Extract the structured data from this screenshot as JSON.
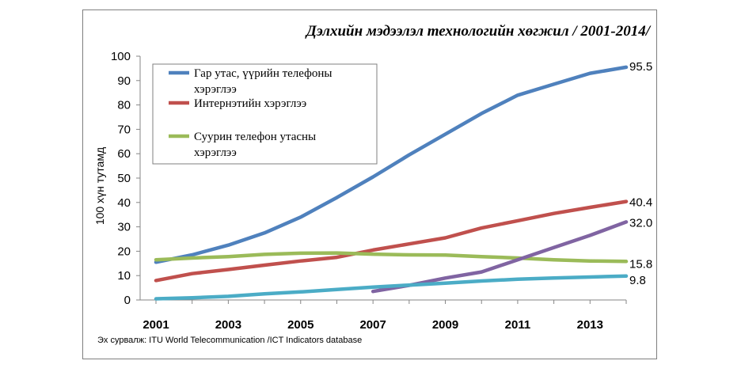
{
  "chart_data": {
    "type": "line",
    "title": "Дэлхийн мэдээлэл технологийн хөгжил / 2001-2014/",
    "ylabel": "100 хүн тутамд",
    "xlabel": "",
    "ylim": [
      0,
      100
    ],
    "xlim": [
      2001,
      2014
    ],
    "x": [
      2001,
      2002,
      2003,
      2004,
      2005,
      2006,
      2007,
      2008,
      2009,
      2010,
      2011,
      2012,
      2013,
      2014
    ],
    "y_ticks": [
      "0",
      "10",
      "20",
      "30",
      "40",
      "50",
      "60",
      "70",
      "80",
      "90",
      "100"
    ],
    "x_ticks": [
      "2001",
      "2003",
      "2005",
      "2007",
      "2009",
      "2011",
      "2013"
    ],
    "grid": false,
    "legend_position": "top-left",
    "series": [
      {
        "name": "Гар утас, үүрийн телефоны хэрэглээ",
        "legend_lines": [
          "Гар утас, үүрийн телефоны",
          "хэрэглээ"
        ],
        "color": "#4F81BD",
        "x": [
          2001,
          2002,
          2003,
          2004,
          2005,
          2006,
          2007,
          2008,
          2009,
          2010,
          2011,
          2012,
          2013,
          2014
        ],
        "values": [
          15.5,
          18.5,
          22.5,
          27.5,
          34,
          42,
          50.5,
          59.5,
          68,
          76.5,
          84,
          88.5,
          93,
          95.5
        ],
        "end_label": "95.5"
      },
      {
        "name": "Интернэтийн хэрэглээ",
        "legend_lines": [
          "Интернэтийн хэрэглээ"
        ],
        "color": "#C0504D",
        "x": [
          2001,
          2002,
          2003,
          2004,
          2005,
          2006,
          2007,
          2008,
          2009,
          2010,
          2011,
          2012,
          2013,
          2014
        ],
        "values": [
          8,
          10.8,
          12.5,
          14.3,
          16,
          17.5,
          20.5,
          23,
          25.5,
          29.5,
          32.5,
          35.5,
          38,
          40.4
        ],
        "end_label": "40.4"
      },
      {
        "name": "Суурин телефон утасны хэрэглээ",
        "legend_lines": [
          "Суурин телефон утасны",
          "хэрэглээ"
        ],
        "color": "#9BBB59",
        "x": [
          2001,
          2002,
          2003,
          2004,
          2005,
          2006,
          2007,
          2008,
          2009,
          2010,
          2011,
          2012,
          2013,
          2014
        ],
        "values": [
          16.5,
          17.2,
          17.8,
          18.7,
          19.2,
          19.3,
          18.8,
          18.5,
          18.4,
          17.8,
          17.2,
          16.5,
          16,
          15.8
        ],
        "end_label": "15.8"
      },
      {
        "name": "",
        "color": "#8064A2",
        "x": [
          2007,
          2008,
          2009,
          2010,
          2011,
          2012,
          2013,
          2014
        ],
        "values": [
          3.5,
          6,
          9,
          11.5,
          16.5,
          21.5,
          26.5,
          32
        ],
        "end_label": "32.0"
      },
      {
        "name": "",
        "color": "#4BACC6",
        "x": [
          2001,
          2002,
          2003,
          2004,
          2005,
          2006,
          2007,
          2008,
          2009,
          2010,
          2011,
          2012,
          2013,
          2014
        ],
        "values": [
          0.5,
          0.9,
          1.5,
          2.5,
          3.3,
          4.3,
          5.3,
          6.1,
          6.9,
          7.8,
          8.5,
          9,
          9.4,
          9.8
        ],
        "end_label": "9.8"
      }
    ],
    "source": "Эх сурвалж: ITU World Telecommunication /ICT Indicators database"
  }
}
